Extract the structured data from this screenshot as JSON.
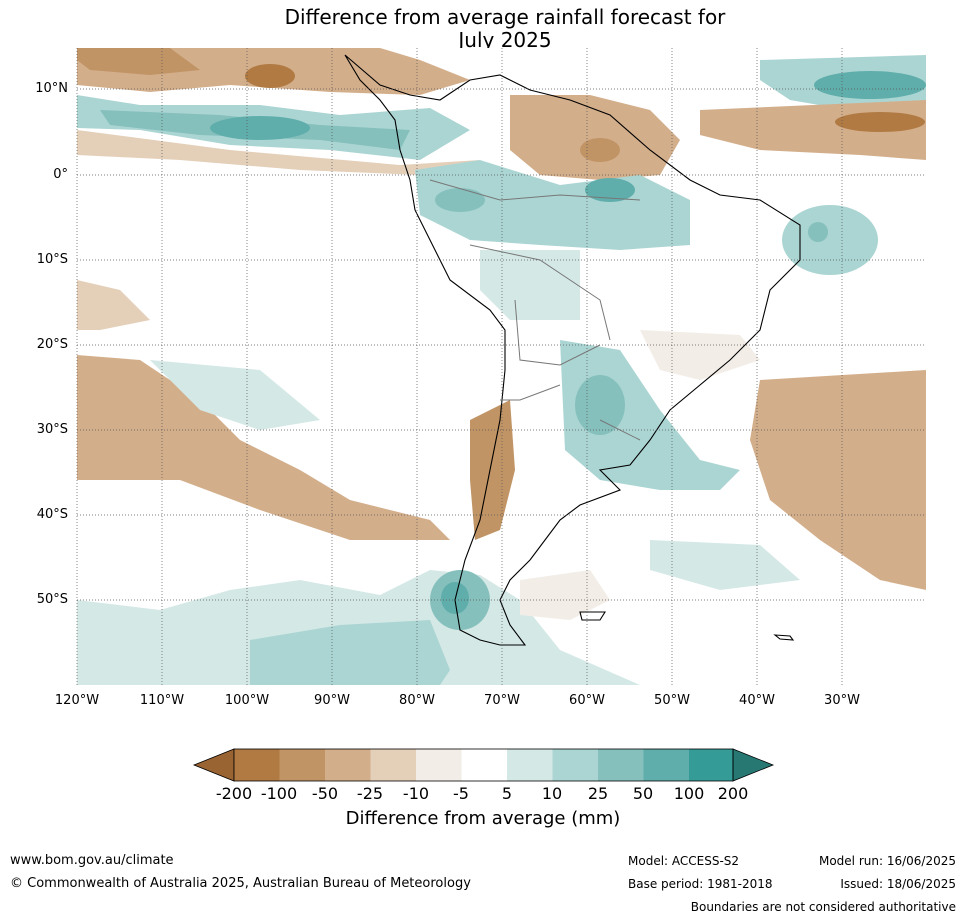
{
  "title": {
    "line1": "Difference from average rainfall forecast for",
    "line2": "July 2025"
  },
  "map": {
    "lat_labels": [
      "10°N",
      "0°",
      "10°S",
      "20°S",
      "30°S",
      "40°S",
      "50°S"
    ],
    "lon_labels": [
      "120°W",
      "110°W",
      "100°W",
      "90°W",
      "80°W",
      "70°W",
      "60°W",
      "50°W",
      "40°W",
      "30°W"
    ]
  },
  "colorbar": {
    "title": "Difference from average (mm)",
    "tick_labels": [
      "-200",
      "-100",
      "-50",
      "-25",
      "-10",
      "-5",
      "5",
      "10",
      "25",
      "50",
      "100",
      "200"
    ],
    "colors": [
      "#9a6332",
      "#b07a42",
      "#c19465",
      "#d3ae8b",
      "#e4cfb9",
      "#f2ede7",
      "#ffffff",
      "#d4e8e6",
      "#abd5d3",
      "#85c0bd",
      "#5faeab",
      "#349b97",
      "#277773"
    ]
  },
  "footer": {
    "website": "www.bom.gov.au/climate",
    "copyright": "© Commonwealth of Australia 2025, Australian Bureau of Meteorology",
    "model": "Model: ACCESS-S2",
    "base_period": "Base period: 1981-2018",
    "model_run": "Model run: 16/06/2025",
    "issued": "Issued: 18/06/2025",
    "disclaimer": "Boundaries are not considered authoritative"
  }
}
